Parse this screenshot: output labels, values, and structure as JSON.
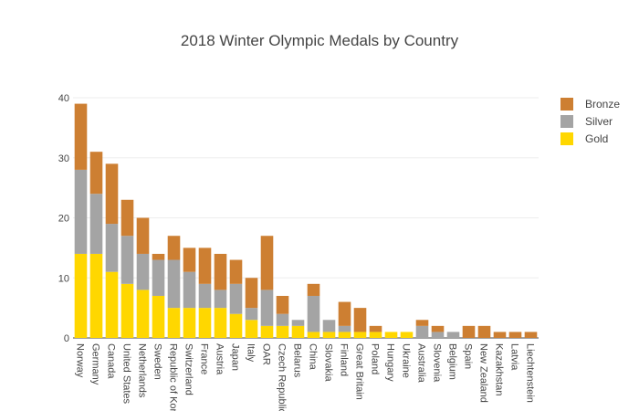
{
  "chart_data": {
    "type": "bar",
    "stacked": true,
    "title": "2018 Winter Olympic Medals by Country",
    "xlabel": "",
    "ylabel": "",
    "ylim": [
      0,
      40
    ],
    "yticks": [
      0,
      10,
      20,
      30,
      40
    ],
    "grid": true,
    "legend_position": "top-right",
    "categories": [
      "Norway",
      "Germany",
      "Canada",
      "United States",
      "Netherlands",
      "Sweden",
      "Republic of Korea",
      "Switzerland",
      "France",
      "Austria",
      "Japan",
      "Italy",
      "OAR",
      "Czech Republic",
      "Belarus",
      "China",
      "Slovakia",
      "Finland",
      "Great Britain",
      "Poland",
      "Hungary",
      "Ukraine",
      "Australia",
      "Slovenia",
      "Belgium",
      "Spain",
      "New Zealand",
      "Kazakhstan",
      "Latvia",
      "Liechtenstein"
    ],
    "series": [
      {
        "name": "Gold",
        "color": "#FFD700",
        "values": [
          14,
          14,
          11,
          9,
          8,
          7,
          5,
          5,
          5,
          5,
          4,
          3,
          2,
          2,
          2,
          1,
          1,
          1,
          1,
          1,
          1,
          1,
          0,
          0,
          0,
          0,
          0,
          0,
          0,
          0
        ]
      },
      {
        "name": "Silver",
        "color": "#A4A4A4",
        "values": [
          14,
          10,
          8,
          8,
          6,
          6,
          8,
          6,
          4,
          3,
          5,
          2,
          6,
          2,
          1,
          6,
          2,
          1,
          0,
          0,
          0,
          0,
          2,
          1,
          1,
          0,
          0,
          0,
          0,
          0
        ]
      },
      {
        "name": "Bronze",
        "color": "#CD7F32",
        "values": [
          11,
          7,
          10,
          6,
          6,
          1,
          4,
          4,
          6,
          6,
          4,
          5,
          9,
          3,
          0,
          2,
          0,
          4,
          4,
          1,
          0,
          0,
          1,
          1,
          0,
          2,
          2,
          1,
          1,
          1
        ]
      }
    ]
  }
}
